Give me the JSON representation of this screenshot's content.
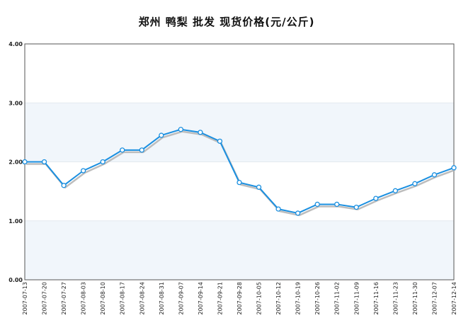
{
  "chart_data": {
    "type": "line",
    "title": "郑州 鸭梨 批发 现货价格(元/公斤)",
    "xlabel": "",
    "ylabel": "",
    "ylim": [
      0,
      4
    ],
    "yticks": [
      "0.00",
      "1.00",
      "2.00",
      "3.00",
      "4.00"
    ],
    "grid": true,
    "categories": [
      "2007-07-13",
      "2007-07-20",
      "2007-07-27",
      "2007-08-03",
      "2007-08-10",
      "2007-08-17",
      "2007-08-24",
      "2007-08-31",
      "2007-09-07",
      "2007-09-14",
      "2007-09-21",
      "2007-09-28",
      "2007-10-05",
      "2007-10-12",
      "2007-10-19",
      "2007-10-26",
      "2007-11-02",
      "2007-11-09",
      "2007-11-16",
      "2007-11-23",
      "2007-11-30",
      "2007-12-07",
      "2007-12-14"
    ],
    "values": [
      2.0,
      2.0,
      1.6,
      1.85,
      2.0,
      2.2,
      2.2,
      2.45,
      2.55,
      2.5,
      2.35,
      1.65,
      1.57,
      1.2,
      1.13,
      1.28,
      1.28,
      1.23,
      1.38,
      1.51,
      1.63,
      1.78,
      1.9
    ],
    "colors": {
      "line": "#1a8fe0",
      "shadow": "#bdbdbd",
      "marker_fill": "#ffffff",
      "band": "#f1f6fb"
    }
  }
}
